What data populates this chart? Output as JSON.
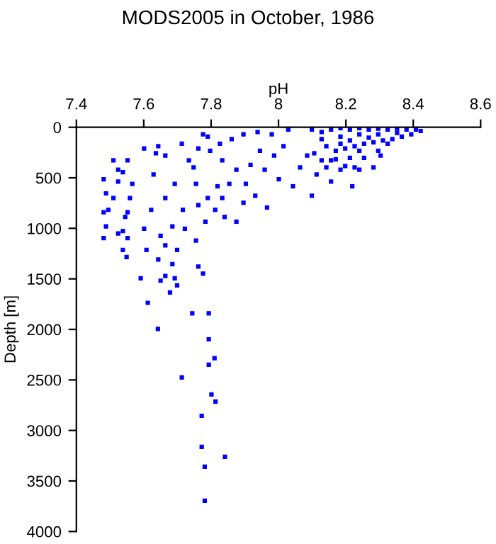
{
  "chart_data": {
    "type": "scatter",
    "title": "MODS2005 in October, 1986",
    "xlabel": "pH",
    "ylabel": "Depth [m]",
    "xlim": [
      7.4,
      8.6
    ],
    "xticks": [
      7.4,
      7.6,
      7.8,
      8,
      8.2,
      8.4,
      8.6
    ],
    "ylim": [
      4000,
      0
    ],
    "yticks": [
      0,
      500,
      1000,
      1500,
      2000,
      2500,
      3000,
      3500,
      4000
    ],
    "grid": false,
    "legend": false,
    "marker": "square",
    "series": [
      {
        "color": "#0000ff",
        "x": [
          7.744,
          7.793,
          7.642,
          7.793,
          7.81,
          7.793,
          7.713,
          7.801,
          7.813,
          7.772,
          7.772,
          7.841,
          7.781,
          7.781,
          7.481,
          7.51,
          7.524,
          7.538,
          7.552,
          7.488,
          7.495,
          7.481,
          7.488,
          7.481,
          7.524,
          7.538,
          7.552,
          7.538,
          7.549,
          7.51,
          7.552,
          7.566,
          7.559,
          7.524,
          7.545,
          7.601,
          7.636,
          7.664,
          7.643,
          7.713,
          7.629,
          7.692,
          7.664,
          7.622,
          7.601,
          7.65,
          7.608,
          7.664,
          7.685,
          7.699,
          7.643,
          7.685,
          7.664,
          7.692,
          7.65,
          7.678,
          7.699,
          7.591,
          7.612,
          7.762,
          7.776,
          7.755,
          7.722,
          7.716,
          7.762,
          7.79,
          7.783,
          7.755,
          7.748,
          7.734,
          7.762,
          7.79,
          7.776,
          7.797,
          7.833,
          7.819,
          7.812,
          7.84,
          7.875,
          7.826,
          7.861,
          7.896,
          7.938,
          7.98,
          8.029,
          7.875,
          7.903,
          7.896,
          7.931,
          7.966,
          7.945,
          7.917,
          7.987,
          8.001,
          8.043,
          8.099,
          8.015,
          8.064,
          8.085,
          8.113,
          8.156,
          8.219,
          8.184,
          8.24,
          8.282,
          8.303,
          8.156,
          7.959,
          7.854,
          7.833,
          8.099,
          8.128,
          8.156,
          8.184,
          8.212,
          8.24,
          8.268,
          8.296,
          8.324,
          8.352,
          8.38,
          8.408,
          8.422,
          8.394,
          8.366,
          8.338,
          8.31,
          8.282,
          8.254,
          8.226,
          8.198,
          8.17,
          8.142,
          8.128,
          8.184,
          8.24,
          8.296,
          8.352,
          8.212,
          8.268,
          8.324,
          8.296,
          8.254,
          8.212,
          8.17,
          8.128,
          8.106,
          8.184,
          8.24,
          8.142,
          8.198,
          8.226
        ],
        "values": [
          1841,
          1841,
          1995,
          2098,
          2285,
          2350,
          2476,
          2644,
          2714,
          2855,
          3163,
          3261,
          3359,
          3695,
          514,
          327,
          420,
          444,
          327,
          654,
          817,
          841,
          981,
          1097,
          1051,
          1027,
          1097,
          1214,
          1284,
          700,
          841,
          560,
          700,
          537,
          887,
          210,
          257,
          280,
          187,
          163,
          467,
          560,
          700,
          817,
          1004,
          1074,
          1214,
          1168,
          981,
          1214,
          1308,
          1354,
          1471,
          1494,
          1518,
          1635,
          1564,
          1494,
          1737,
          1378,
          1448,
          1121,
          1004,
          817,
          770,
          700,
          934,
          560,
          397,
          327,
          210,
          93,
          70,
          233,
          327,
          584,
          817,
          887,
          934,
          163,
          117,
          70,
          47,
          70,
          23,
          420,
          560,
          747,
          677,
          794,
          233,
          373,
          280,
          514,
          584,
          677,
          187,
          397,
          280,
          467,
          537,
          584,
          420,
          420,
          397,
          280,
          327,
          420,
          560,
          700,
          23,
          47,
          23,
          9,
          23,
          9,
          23,
          14,
          23,
          14,
          23,
          23,
          37,
          70,
          93,
          117,
          131,
          149,
          163,
          187,
          210,
          233,
          187,
          117,
          93,
          70,
          70,
          56,
          131,
          103,
          163,
          233,
          303,
          303,
          317,
          327,
          257,
          163,
          233,
          397,
          383,
          397
        ]
      }
    ]
  }
}
